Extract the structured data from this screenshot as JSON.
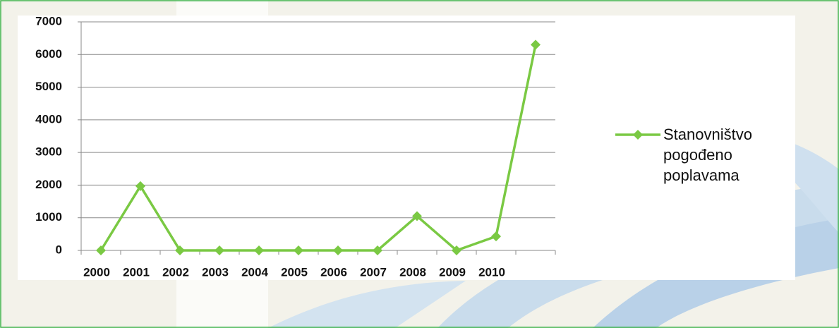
{
  "chart_data": {
    "type": "line",
    "categories": [
      "2000",
      "2001",
      "2002",
      "2003",
      "2004",
      "2005",
      "2006",
      "2007",
      "2008",
      "2009",
      "2010",
      null
    ],
    "series": [
      {
        "name": "Stanovništvo pogođeno poplavama",
        "color": "#7ac943",
        "values": [
          0,
          1970,
          0,
          0,
          0,
          0,
          0,
          0,
          1050,
          0,
          430,
          6300
        ]
      }
    ],
    "ylim": [
      0,
      7000
    ],
    "yticks": [
      0,
      1000,
      2000,
      3000,
      4000,
      5000,
      6000,
      7000
    ],
    "grid": true,
    "legend": "right"
  }
}
